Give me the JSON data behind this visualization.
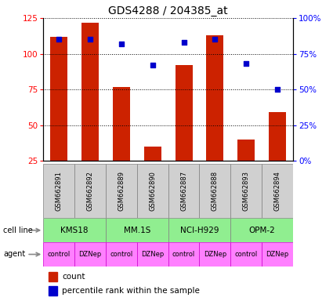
{
  "title": "GDS4288 / 204385_at",
  "samples": [
    "GSM662891",
    "GSM662892",
    "GSM662889",
    "GSM662890",
    "GSM662887",
    "GSM662888",
    "GSM662893",
    "GSM662894"
  ],
  "count_values": [
    112,
    122,
    77,
    35,
    92,
    113,
    40,
    59
  ],
  "percentile_values": [
    85,
    85,
    82,
    67,
    83,
    85,
    68,
    50
  ],
  "bar_color": "#cc2200",
  "dot_color": "#0000cc",
  "ylim_left": [
    25,
    125
  ],
  "ylim_right": [
    0,
    100
  ],
  "yticks_left": [
    25,
    50,
    75,
    100,
    125
  ],
  "yticks_right": [
    0,
    25,
    50,
    75,
    100
  ],
  "ytick_labels_right": [
    "0%",
    "25%",
    "50%",
    "75%",
    "100%"
  ],
  "cell_lines": [
    "KMS18",
    "MM.1S",
    "NCI-H929",
    "OPM-2"
  ],
  "cell_line_color": "#90EE90",
  "agent_labels": [
    "control",
    "DZNep",
    "control",
    "DZNep",
    "control",
    "DZNep",
    "control",
    "DZNep"
  ],
  "agent_color": "#FF80FF",
  "label_count": "count",
  "label_percentile": "percentile rank within the sample",
  "sample_box_color": "#d0d0d0",
  "arrow_color": "#888888",
  "title_fontsize": 10,
  "bar_width": 0.55
}
